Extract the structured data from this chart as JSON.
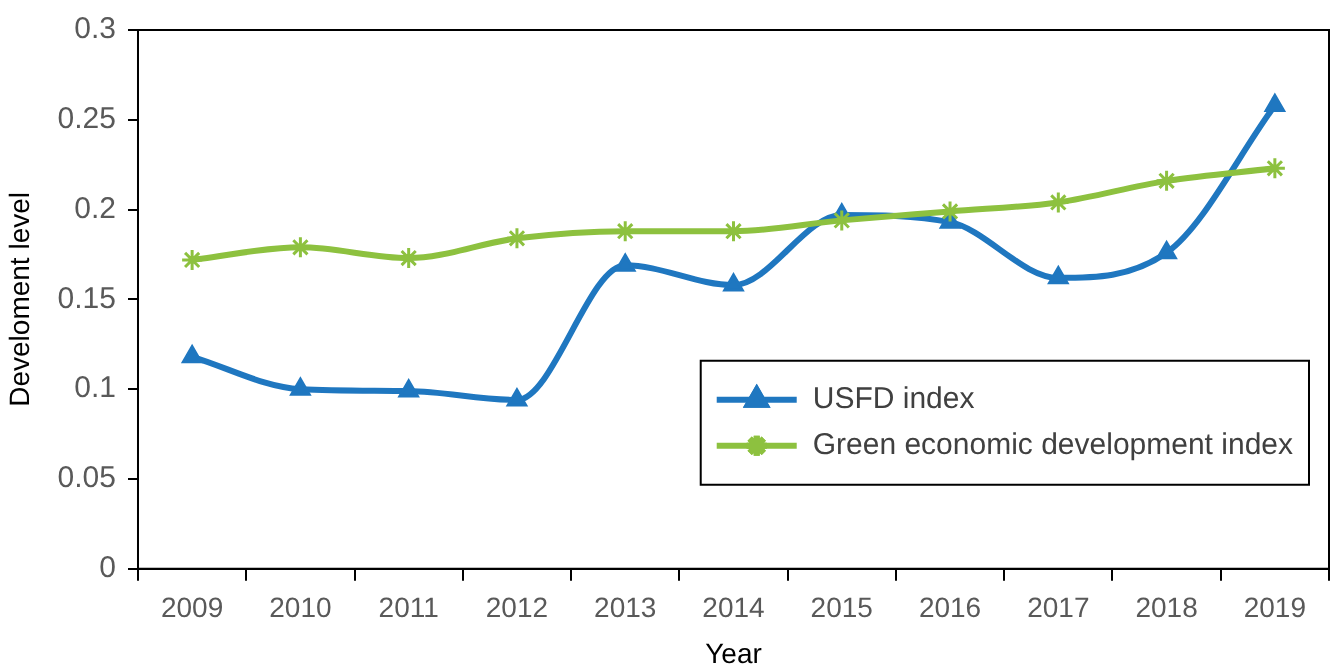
{
  "chart_data": {
    "type": "line",
    "xlabel": "Year",
    "ylabel": "Develoment level",
    "categories": [
      "2009",
      "2010",
      "2011",
      "2012",
      "2013",
      "2014",
      "2015",
      "2016",
      "2017",
      "2018",
      "2019"
    ],
    "series": [
      {
        "name": "USFD index",
        "color": "#1f77c0",
        "marker": "triangle",
        "values": [
          0.118,
          0.1,
          0.099,
          0.094,
          0.169,
          0.158,
          0.197,
          0.193,
          0.162,
          0.176,
          0.258
        ]
      },
      {
        "name": "Green economic development index",
        "color": "#8dc13f",
        "marker": "cross",
        "values": [
          0.172,
          0.179,
          0.173,
          0.184,
          0.188,
          0.188,
          0.194,
          0.199,
          0.204,
          0.216,
          0.223
        ]
      }
    ],
    "ylim": [
      0,
      0.3
    ],
    "yticks": [
      0,
      0.05,
      0.1,
      0.15,
      0.2,
      0.25,
      0.3
    ],
    "grid": false,
    "legend": "bottom right",
    "line_style": "solid"
  }
}
